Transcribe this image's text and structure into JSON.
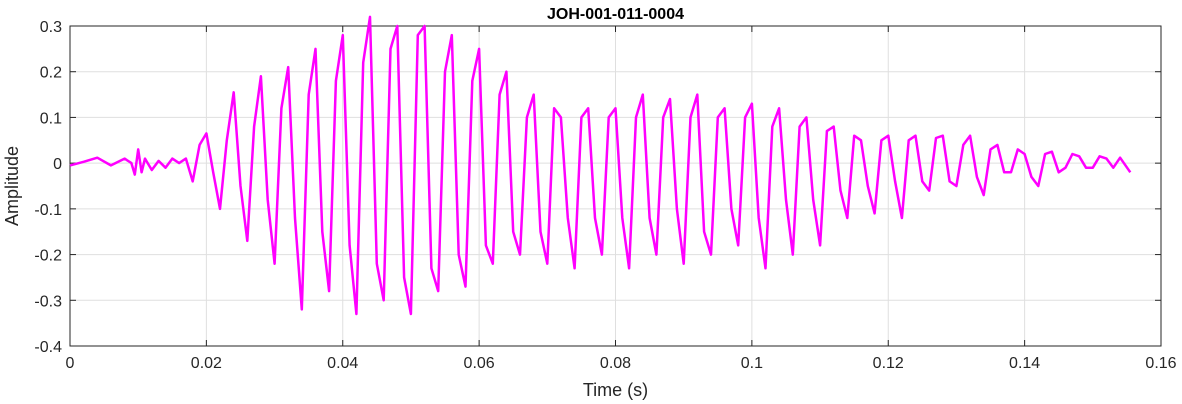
{
  "chart_data": {
    "type": "line",
    "title": "JOH-001-011-0004",
    "xlabel": "Time (s)",
    "ylabel": "Amplitude",
    "xlim": [
      0,
      0.16
    ],
    "ylim": [
      -0.4,
      0.3
    ],
    "grid": true,
    "x_ticks": [
      0,
      0.02,
      0.04,
      0.06,
      0.08,
      0.1,
      0.12,
      0.14,
      0.16
    ],
    "x_tick_labels": [
      "0",
      "0.02",
      "0.04",
      "0.06",
      "0.08",
      "0.1",
      "0.12",
      "0.14",
      "0.16"
    ],
    "y_ticks": [
      0.3,
      0.2,
      0.1,
      0,
      -0.1,
      -0.2,
      -0.3,
      -0.4
    ],
    "y_tick_labels": [
      "0.3",
      "0.2",
      "0.1",
      "0",
      "-0.1",
      "-0.2",
      "-0.3",
      "-0.4"
    ],
    "series": [
      {
        "color": "#ff00ff",
        "x": [
          0,
          0.002,
          0.004,
          0.006,
          0.008,
          0.009,
          0.0095,
          0.01,
          0.0105,
          0.011,
          0.012,
          0.013,
          0.014,
          0.015,
          0.016,
          0.017,
          0.018,
          0.019,
          0.02,
          0.021,
          0.022,
          0.023,
          0.024,
          0.025,
          0.026,
          0.027,
          0.028,
          0.029,
          0.03,
          0.031,
          0.032,
          0.033,
          0.034,
          0.035,
          0.036,
          0.037,
          0.038,
          0.039,
          0.04,
          0.041,
          0.042,
          0.043,
          0.044,
          0.045,
          0.046,
          0.047,
          0.048,
          0.049,
          0.05,
          0.051,
          0.052,
          0.053,
          0.054,
          0.055,
          0.056,
          0.057,
          0.058,
          0.059,
          0.06,
          0.061,
          0.062,
          0.063,
          0.064,
          0.065,
          0.066,
          0.067,
          0.068,
          0.069,
          0.07,
          0.071,
          0.072,
          0.073,
          0.074,
          0.075,
          0.076,
          0.077,
          0.078,
          0.079,
          0.08,
          0.081,
          0.082,
          0.083,
          0.084,
          0.085,
          0.086,
          0.087,
          0.088,
          0.089,
          0.09,
          0.091,
          0.092,
          0.093,
          0.094,
          0.095,
          0.096,
          0.097,
          0.098,
          0.099,
          0.1,
          0.101,
          0.102,
          0.103,
          0.104,
          0.105,
          0.106,
          0.107,
          0.108,
          0.109,
          0.11,
          0.111,
          0.112,
          0.113,
          0.114,
          0.115,
          0.116,
          0.117,
          0.118,
          0.119,
          0.12,
          0.121,
          0.122,
          0.123,
          0.124,
          0.125,
          0.126,
          0.127,
          0.128,
          0.129,
          0.13,
          0.131,
          0.132,
          0.133,
          0.134,
          0.135,
          0.136,
          0.137,
          0.138,
          0.139,
          0.14,
          0.141,
          0.142,
          0.143,
          0.144,
          0.145,
          0.146,
          0.147,
          0.148,
          0.149,
          0.15,
          0.151,
          0.152,
          0.153,
          0.154,
          0.1555
        ],
        "y": [
          -0.005,
          0.003,
          0.012,
          -0.005,
          0.01,
          0.0,
          -0.025,
          0.03,
          -0.02,
          0.01,
          -0.015,
          0.005,
          -0.01,
          0.01,
          0.0,
          0.01,
          -0.04,
          0.04,
          0.065,
          -0.02,
          -0.1,
          0.05,
          0.155,
          -0.05,
          -0.17,
          0.08,
          0.19,
          -0.08,
          -0.22,
          0.12,
          0.21,
          -0.12,
          -0.32,
          0.15,
          0.25,
          -0.15,
          -0.28,
          0.18,
          0.28,
          -0.18,
          -0.33,
          0.22,
          0.32,
          -0.22,
          -0.3,
          0.25,
          0.3,
          -0.25,
          -0.33,
          0.28,
          0.3,
          -0.23,
          -0.28,
          0.2,
          0.28,
          -0.2,
          -0.27,
          0.18,
          0.25,
          -0.18,
          -0.22,
          0.15,
          0.2,
          -0.15,
          -0.2,
          0.1,
          0.15,
          -0.15,
          -0.22,
          0.12,
          0.1,
          -0.12,
          -0.23,
          0.1,
          0.12,
          -0.12,
          -0.2,
          0.1,
          0.12,
          -0.12,
          -0.23,
          0.1,
          0.15,
          -0.12,
          -0.2,
          0.1,
          0.14,
          -0.1,
          -0.22,
          0.1,
          0.15,
          -0.15,
          -0.2,
          0.1,
          0.12,
          -0.1,
          -0.18,
          0.1,
          0.13,
          -0.12,
          -0.23,
          0.08,
          0.12,
          -0.08,
          -0.2,
          0.08,
          0.1,
          -0.08,
          -0.18,
          0.07,
          0.08,
          -0.06,
          -0.12,
          0.06,
          0.05,
          -0.05,
          -0.11,
          0.05,
          0.06,
          -0.04,
          -0.12,
          0.05,
          0.06,
          -0.04,
          -0.06,
          0.055,
          0.06,
          -0.04,
          -0.05,
          0.04,
          0.06,
          -0.03,
          -0.07,
          0.03,
          0.04,
          -0.02,
          -0.02,
          0.03,
          0.02,
          -0.03,
          -0.05,
          0.02,
          0.025,
          -0.02,
          -0.01,
          0.02,
          0.015,
          -0.01,
          -0.01,
          0.015,
          0.01,
          -0.01,
          0.012,
          -0.02
        ]
      }
    ]
  }
}
